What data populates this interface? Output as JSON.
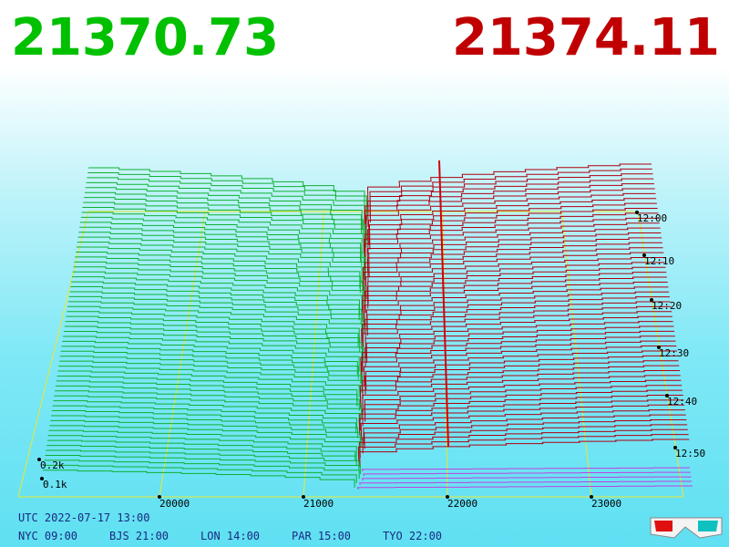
{
  "header": {
    "bid": "21370.73",
    "ask": "21374.11"
  },
  "price_axis": [
    "20000",
    "21000",
    "22000",
    "23000"
  ],
  "depth_axis": [
    "0.2k",
    "0.1k"
  ],
  "time_axis": [
    "12:00",
    "12:10",
    "12:20",
    "12:30",
    "12:40",
    "12:50"
  ],
  "footer": {
    "utc": "UTC 2022-07-17 13:00",
    "clocks": [
      "NYC 09:00",
      "BJS 21:00",
      "LON 14:00",
      "PAR 15:00",
      "TYO 22:00"
    ]
  }
}
